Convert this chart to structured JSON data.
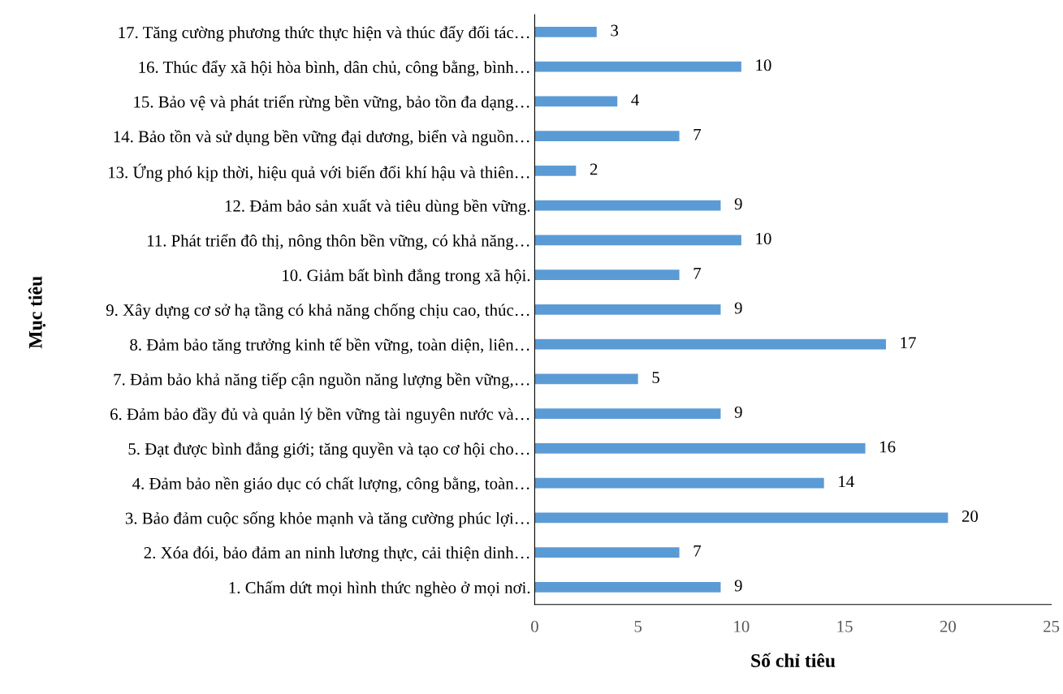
{
  "chart_data": {
    "type": "bar",
    "orientation": "horizontal",
    "xlabel": "Số chỉ tiêu",
    "ylabel": "Mục tiêu",
    "categories": [
      "17. Tăng cường phương thức thực hiện và thúc đẩy đối tác…",
      "16. Thúc đẩy xã hội hòa bình, dân chủ, công bằng, bình…",
      "15. Bảo vệ và phát triển rừng bền vững, bảo tồn đa dạng…",
      "14. Bảo tồn và sử dụng bền vững đại dương, biển và nguồn…",
      "13. Ứng phó kịp thời, hiệu quả với biến đổi khí hậu và thiên…",
      "12. Đảm bảo sản xuất và tiêu dùng bền vững.",
      "11. Phát triển đô thị, nông thôn bền vững, có khả năng…",
      "10. Giảm bất bình đẳng trong xã hội.",
      "9. Xây dựng cơ sở hạ tầng có khả năng chống chịu cao, thúc…",
      "8. Đảm bảo tăng trưởng kinh tế bền vững, toàn diện, liên…",
      "7. Đảm bảo khả năng tiếp cận nguồn năng lượng bền vững,…",
      "6. Đảm bảo đầy đủ và quản lý bền vững tài nguyên nước và…",
      "5. Đạt được bình đẳng giới; tăng quyền và tạo cơ hội cho…",
      "4. Đảm bảo nền giáo dục có chất lượng, công bằng, toàn…",
      "3. Bảo đảm cuộc sống khỏe mạnh và tăng cường phúc lợi…",
      "2. Xóa đói, bảo đảm an ninh lương thực, cải thiện dinh…",
      "1. Chấm dứt mọi hình thức nghèo ở mọi nơi."
    ],
    "values": [
      3,
      10,
      4,
      7,
      2,
      9,
      10,
      7,
      9,
      17,
      5,
      9,
      16,
      14,
      20,
      7,
      9
    ],
    "color": "#5b9bd5",
    "xlim": [
      0,
      25
    ],
    "xticks": [
      0,
      5,
      10,
      15,
      20,
      25
    ],
    "data_labels": true,
    "grid": false,
    "legend": false
  }
}
